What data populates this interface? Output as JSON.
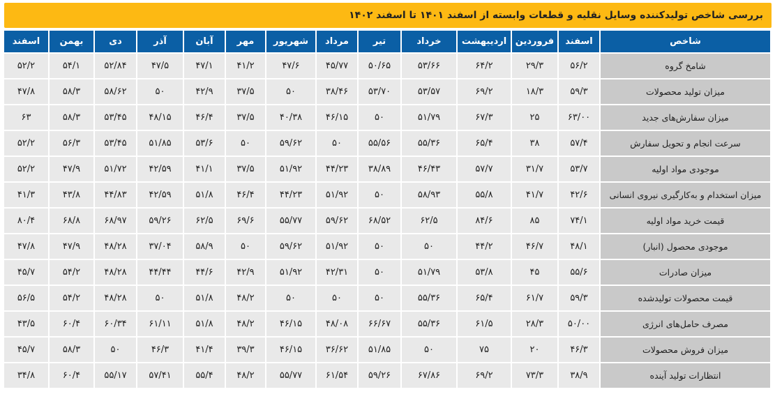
{
  "title": "بررسی شاخص تولیدکننده وسایل نقلیه و قطعات وابسته از اسفند ۱۴۰۱ تا اسفند ۱۴۰۲",
  "colors": {
    "title_bg": "#FDB913",
    "header_bg": "#0B5FA5",
    "label_bg": "#C9C9C9",
    "cell_bg": "#E9E9E9"
  },
  "headers": [
    "شاخص",
    "اسفند",
    "فروردین",
    "اردیبهشت",
    "خرداد",
    "تیر",
    "مرداد",
    "شهریور",
    "مهر",
    "آبان",
    "آذر",
    "دی",
    "بهمن",
    "اسفند"
  ],
  "rows": [
    {
      "label": "شامخ گروه",
      "values": [
        "۵۶/۲",
        "۲۹/۳",
        "۶۴/۲",
        "۵۳/۶۶",
        "۵۰/۶۵",
        "۴۵/۷۷",
        "۴۷/۶",
        "۴۱/۲",
        "۴۷/۱",
        "۴۷/۵",
        "۵۲/۸۴",
        "۵۴/۱",
        "۵۲/۲"
      ]
    },
    {
      "label": "میزان تولید محصولات",
      "values": [
        "۵۹/۳",
        "۱۸/۳",
        "۶۹/۲",
        "۵۳/۵۷",
        "۵۳/۷۰",
        "۳۸/۴۶",
        "۵۰",
        "۳۷/۵",
        "۴۲/۹",
        "۵۰",
        "۵۸/۶۲",
        "۵۸/۳",
        "۴۷/۸"
      ]
    },
    {
      "label": "میزان سفارش‌های جدید",
      "values": [
        "۶۳/۰۰",
        "۲۵",
        "۶۷/۳",
        "۵۱/۷۹",
        "۵۰",
        "۴۶/۱۵",
        "۴۰/۳۸",
        "۳۷/۵",
        "۴۶/۴",
        "۴۸/۱۵",
        "۵۳/۴۵",
        "۵۸/۳",
        "۶۳"
      ]
    },
    {
      "label": "سرعت انجام و تحویل سفارش",
      "values": [
        "۵۷/۴",
        "۳۸",
        "۶۵/۴",
        "۵۵/۳۶",
        "۵۵/۵۶",
        "۵۰",
        "۵۹/۶۲",
        "۵۰",
        "۵۳/۶",
        "۵۱/۸۵",
        "۵۳/۴۵",
        "۵۶/۳",
        "۵۲/۲"
      ]
    },
    {
      "label": "موجودی مواد اولیه",
      "values": [
        "۵۳/۷",
        "۳۱/۷",
        "۵۷/۷",
        "۴۶/۴۳",
        "۳۸/۸۹",
        "۴۴/۲۳",
        "۵۱/۹۲",
        "۳۷/۵",
        "۴۱/۱",
        "۴۲/۵۹",
        "۵۱/۷۲",
        "۴۷/۹",
        "۵۲/۲"
      ]
    },
    {
      "label": "میزان استخدام و به‌کارگیری نیروی انسانی",
      "values": [
        "۴۲/۶",
        "۴۱/۷",
        "۵۵/۸",
        "۵۸/۹۳",
        "۵۰",
        "۵۱/۹۲",
        "۴۴/۲۳",
        "۴۶/۴",
        "۵۱/۸",
        "۴۲/۵۹",
        "۴۴/۸۳",
        "۴۳/۸",
        "۴۱/۳"
      ]
    },
    {
      "label": "قیمت خرید مواد اولیه",
      "values": [
        "۷۴/۱",
        "۸۵",
        "۸۴/۶",
        "۶۲/۵",
        "۶۸/۵۲",
        "۵۹/۶۲",
        "۵۵/۷۷",
        "۶۹/۶",
        "۶۲/۵",
        "۵۹/۲۶",
        "۶۸/۹۷",
        "۶۸/۸",
        "۸۰/۴"
      ]
    },
    {
      "label": "موجودی محصول (انبار)",
      "values": [
        "۴۸/۱",
        "۴۶/۷",
        "۴۴/۲",
        "۵۰",
        "۵۰",
        "۵۱/۹۲",
        "۵۹/۶۲",
        "۵۰",
        "۵۸/۹",
        "۳۷/۰۴",
        "۴۸/۲۸",
        "۴۷/۹",
        "۴۷/۸"
      ]
    },
    {
      "label": "میزان صادرات",
      "values": [
        "۵۵/۶",
        "۴۵",
        "۵۳/۸",
        "۵۱/۷۹",
        "۵۰",
        "۴۲/۳۱",
        "۵۱/۹۲",
        "۴۲/۹",
        "۴۴/۶",
        "۴۴/۴۴",
        "۴۸/۲۸",
        "۵۴/۲",
        "۴۵/۷"
      ]
    },
    {
      "label": "قیمت محصولات تولیدشده",
      "values": [
        "۵۹/۳",
        "۶۱/۷",
        "۶۵/۴",
        "۵۵/۳۶",
        "۵۰",
        "۵۰",
        "۵۰",
        "۴۸/۲",
        "۵۱/۸",
        "۵۰",
        "۴۸/۲۸",
        "۵۴/۲",
        "۵۶/۵"
      ]
    },
    {
      "label": "مصرف حامل‌های انرژی",
      "values": [
        "۵۰/۰۰",
        "۲۸/۳",
        "۶۱/۵",
        "۵۵/۳۶",
        "۶۶/۶۷",
        "۴۸/۰۸",
        "۴۶/۱۵",
        "۴۸/۲",
        "۵۱/۸",
        "۶۱/۱۱",
        "۶۰/۳۴",
        "۶۰/۴",
        "۴۳/۵"
      ]
    },
    {
      "label": "میزان فروش محصولات",
      "values": [
        "۴۶/۳",
        "۲۰",
        "۷۵",
        "۵۰",
        "۵۱/۸۵",
        "۳۶/۶۲",
        "۴۶/۱۵",
        "۳۹/۳",
        "۴۱/۴",
        "۴۶/۳",
        "۵۰",
        "۵۸/۳",
        "۴۵/۷"
      ]
    },
    {
      "label": "انتظارات تولید آینده",
      "values": [
        "۳۸/۹",
        "۷۳/۳",
        "۶۹/۲",
        "۶۷/۸۶",
        "۵۹/۲۶",
        "۶۱/۵۴",
        "۵۵/۷۷",
        "۴۸/۲",
        "۵۵/۴",
        "۵۷/۴۱",
        "۵۵/۱۷",
        "۶۰/۴",
        "۳۴/۸"
      ]
    }
  ]
}
